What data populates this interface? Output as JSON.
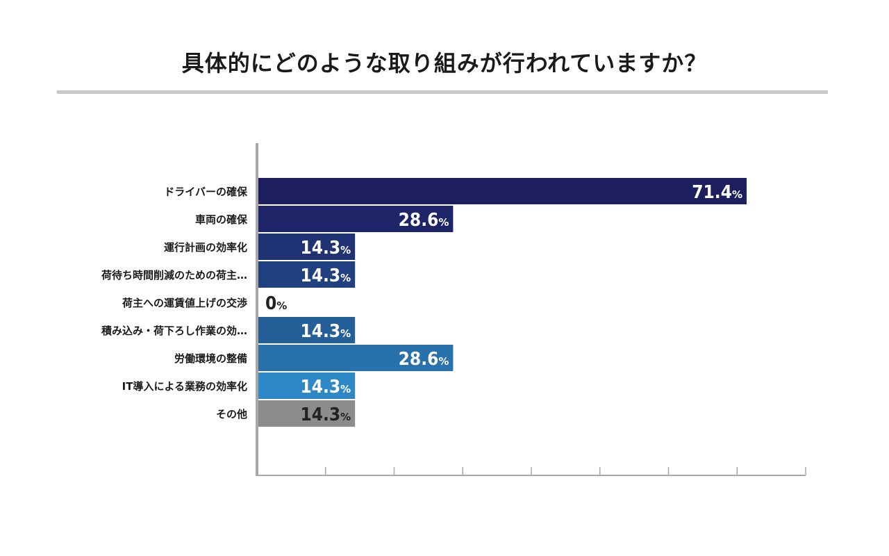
{
  "page": {
    "title": "具体的にどのような取り組みが行われていますか？"
  },
  "chart_data": {
    "type": "bar",
    "orientation": "horizontal",
    "title": "具体的にどのような取り組みが行われていますか？",
    "xlabel": "",
    "ylabel": "",
    "xlim": [
      0,
      80
    ],
    "unit": "%",
    "categories": [
      "ドライバーの確保",
      "車両の確保",
      "運行計画の効率化",
      "荷待ち時間削減のための荷主…",
      "荷主への運賃値上げの交渉",
      "積み込み・荷下ろし作業の効…",
      "労働環境の整備",
      "IT導入による業務の効率化",
      "その他"
    ],
    "values": [
      71.4,
      28.6,
      14.3,
      14.3,
      0,
      14.3,
      28.6,
      14.3,
      14.3
    ],
    "value_labels": [
      "71.4",
      "28.6",
      "14.3",
      "14.3",
      "0",
      "14.3",
      "28.6",
      "14.3",
      "14.3"
    ],
    "colors": [
      "#1c1e5e",
      "#1d2568",
      "#1f3274",
      "#20407f",
      "#22508a",
      "#245f98",
      "#2871aa",
      "#2e88c6",
      "#8c8c8c"
    ],
    "label_colors": [
      "#ffffff",
      "#ffffff",
      "#ffffff",
      "#ffffff",
      "#222222",
      "#ffffff",
      "#ffffff",
      "#ffffff",
      "#222222"
    ],
    "tick_count": 8,
    "grid": false
  }
}
